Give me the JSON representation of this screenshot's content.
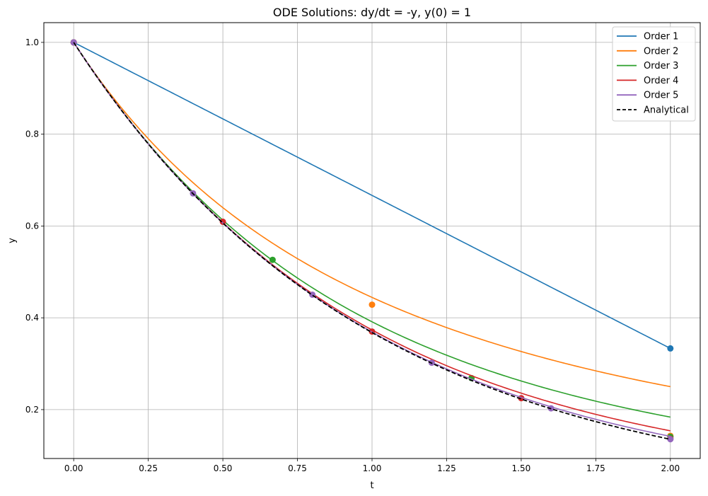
{
  "chart_data": {
    "type": "line",
    "title": "ODE Solutions: dy/dt = -y, y(0) = 1",
    "xlabel": "t",
    "ylabel": "y",
    "xlim": [
      -0.1,
      2.1
    ],
    "ylim": [
      0.0935,
      1.043
    ],
    "xticks": [
      0.0,
      0.25,
      0.5,
      0.75,
      1.0,
      1.25,
      1.5,
      1.75,
      2.0
    ],
    "xtick_labels": [
      "0.00",
      "0.25",
      "0.50",
      "0.75",
      "1.00",
      "1.25",
      "1.50",
      "1.75",
      "2.00"
    ],
    "yticks": [
      0.2,
      0.4,
      0.6,
      0.8,
      1.0
    ],
    "ytick_labels": [
      "0.2",
      "0.4",
      "0.6",
      "0.8",
      "1.0"
    ],
    "grid": true,
    "legend_position": "top-right",
    "series": [
      {
        "name": "Order 1",
        "color": "#1f77b4",
        "style": "solid",
        "markers_x": [
          0.0,
          2.0
        ],
        "markers_y": [
          1.0,
          0.3333
        ]
      },
      {
        "name": "Order 2",
        "color": "#ff7f0e",
        "style": "solid",
        "markers_x": [
          0.0,
          1.0,
          2.0
        ],
        "markers_y": [
          1.0,
          0.4286,
          0.1429
        ]
      },
      {
        "name": "Order 3",
        "color": "#2ca02c",
        "style": "solid",
        "markers_x": [
          0.0,
          0.6667,
          1.3333,
          2.0
        ],
        "markers_y": [
          1.0,
          0.5263,
          0.2687,
          0.1407
        ]
      },
      {
        "name": "Order 4",
        "color": "#d62728",
        "style": "solid",
        "markers_x": [
          0.0,
          0.5,
          1.0,
          1.5,
          2.0
        ],
        "markers_y": [
          1.0,
          0.6092,
          0.37,
          0.225,
          0.1365
        ]
      },
      {
        "name": "Order 5",
        "color": "#9467bd",
        "style": "solid",
        "markers_x": [
          0.0,
          0.4,
          0.8,
          1.2,
          1.6,
          2.0
        ],
        "markers_y": [
          1.0,
          0.6711,
          0.4504,
          0.3022,
          0.2028,
          0.1355
        ]
      },
      {
        "name": "Analytical",
        "color": "#000000",
        "style": "dashed",
        "markers_x": [],
        "markers_y": []
      }
    ]
  }
}
